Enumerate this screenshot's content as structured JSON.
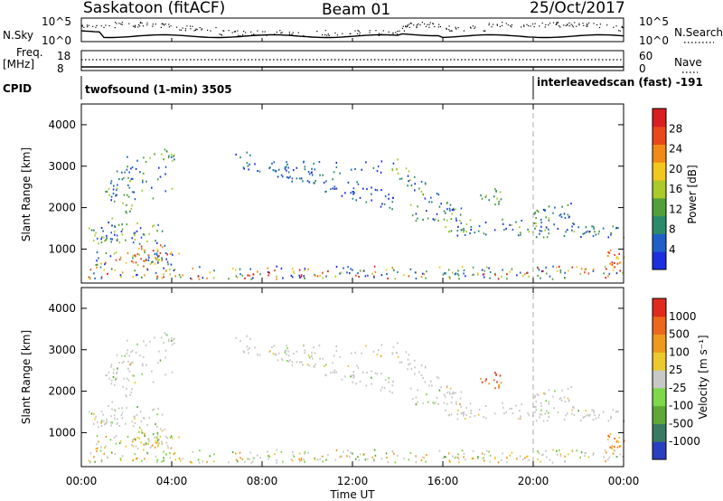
{
  "header": {
    "station": "Saskatoon (fitACF)",
    "beam": "Beam 01",
    "date": "25/Oct/2017"
  },
  "top_panel": {
    "nsky_label": "N.Sky",
    "nsky_ticks": [
      "10^5",
      "10^0"
    ],
    "nsearch_label": "N.Search",
    "nsearch_ticks": [
      "10^5",
      "10^0"
    ],
    "freq_label": "Freq.",
    "freq_unit": "[MHz]",
    "freq_ticks": [
      "18",
      "8"
    ],
    "nave_label": "Nave",
    "nave_ticks": [
      "60",
      "0"
    ],
    "cpid_label": "CPID",
    "cpid_segments": [
      {
        "label": "twofsound (1-min) 3505",
        "start_hour": 0
      },
      {
        "label": "interleavedscan (fast) -191",
        "start_hour": 20
      }
    ]
  },
  "chart_data": [
    {
      "type": "heatmap",
      "name": "power",
      "ylabel": "Slant Range [km]",
      "ylim": [
        180,
        4500
      ],
      "yticks": [
        "1000",
        "2000",
        "3000",
        "4000"
      ],
      "colorbar_label": "Power [dB]",
      "colorbar_ticks": [
        "4",
        "8",
        "12",
        "16",
        "20",
        "24",
        "28"
      ],
      "colorbar_colors": [
        "#1c2ee0",
        "#1f60c8",
        "#2a8a6a",
        "#52a03a",
        "#aacb2a",
        "#f2c81e",
        "#f28a16",
        "#e8481a",
        "#d81e1e"
      ],
      "colorbar_range": [
        0,
        32
      ]
    },
    {
      "type": "heatmap",
      "name": "velocity",
      "ylabel": "Slant Range [km]",
      "ylim": [
        180,
        4500
      ],
      "yticks": [
        "1000",
        "2000",
        "3000",
        "4000"
      ],
      "colorbar_label": "Velocity [m s⁻¹]",
      "colorbar_ticks": [
        "1000",
        "500",
        "100",
        "25",
        "-25",
        "-100",
        "-500",
        "-1000"
      ],
      "colorbar_colors": [
        "#2a3ec0",
        "#3a7a60",
        "#5fa838",
        "#7dd84a",
        "#c8c8c4",
        "#ecc92c",
        "#ee9a1c",
        "#ec681a",
        "#e02a1e"
      ]
    }
  ],
  "x_axis": {
    "label": "Time UT",
    "ticks": [
      "00:00",
      "04:00",
      "08:00",
      "12:00",
      "16:00",
      "20:00",
      "00:00"
    ],
    "xlim_hours": [
      0,
      24
    ]
  }
}
